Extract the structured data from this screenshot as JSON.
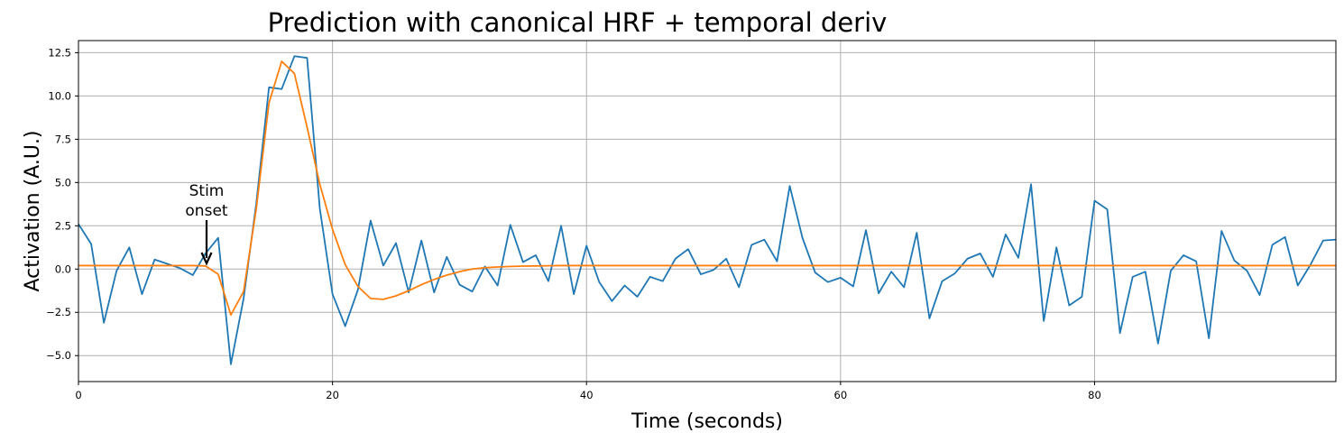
{
  "chart_data": {
    "type": "line",
    "title": "Prediction with canonical HRF + temporal deriv",
    "xlabel": "Time (seconds)",
    "ylabel": "Activation (A.U.)",
    "xlim": [
      0,
      99
    ],
    "ylim": [
      -6.5,
      13.2
    ],
    "xticks": [
      0,
      20,
      40,
      60,
      80
    ],
    "xtick_labels": [
      "0",
      "20",
      "40",
      "60",
      "80"
    ],
    "yticks": [
      -5.0,
      -2.5,
      0.0,
      2.5,
      5.0,
      7.5,
      10.0,
      12.5
    ],
    "ytick_labels": [
      "−5.0",
      "−2.5",
      "0.0",
      "2.5",
      "5.0",
      "7.5",
      "10.0",
      "12.5"
    ],
    "grid": true,
    "series": [
      {
        "color": "#1f77b4",
        "x": [
          0,
          1,
          2,
          3,
          4,
          5,
          6,
          7,
          8,
          9,
          10,
          11,
          12,
          13,
          14,
          15,
          16,
          17,
          18,
          19,
          20,
          21,
          22,
          23,
          24,
          25,
          26,
          27,
          28,
          29,
          30,
          31,
          32,
          33,
          34,
          35,
          36,
          37,
          38,
          39,
          40,
          41,
          42,
          43,
          44,
          45,
          46,
          47,
          48,
          49,
          50,
          51,
          52,
          53,
          54,
          55,
          56,
          57,
          58,
          59,
          60,
          61,
          62,
          63,
          64,
          65,
          66,
          67,
          68,
          69,
          70,
          71,
          72,
          73,
          74,
          75,
          76,
          77,
          78,
          79,
          80,
          81,
          82,
          83,
          84,
          85,
          86,
          87,
          88,
          89,
          90,
          91,
          92,
          93,
          94,
          95,
          96,
          97,
          98,
          99
        ],
        "y": [
          2.6,
          1.45,
          -3.1,
          -0.1,
          1.25,
          -1.45,
          0.55,
          0.3,
          0.05,
          -0.35,
          0.9,
          1.8,
          -5.5,
          -1.7,
          3.8,
          10.5,
          10.4,
          12.3,
          12.2,
          3.5,
          -1.45,
          -3.3,
          -1.2,
          2.8,
          0.2,
          1.5,
          -1.35,
          1.65,
          -1.35,
          0.7,
          -0.9,
          -1.3,
          0.15,
          -0.95,
          2.55,
          0.4,
          0.8,
          -0.7,
          2.5,
          -1.45,
          1.35,
          -0.75,
          -1.85,
          -0.95,
          -1.6,
          -0.45,
          -0.7,
          0.6,
          1.15,
          -0.3,
          -0.05,
          0.6,
          -1.05,
          1.4,
          1.7,
          0.45,
          4.8,
          1.8,
          -0.2,
          -0.75,
          -0.5,
          -1.0,
          2.25,
          -1.4,
          -0.15,
          -1.05,
          2.1,
          -2.85,
          -0.7,
          -0.25,
          0.6,
          0.9,
          -0.45,
          2.0,
          0.65,
          4.9,
          -3.0,
          1.25,
          -2.1,
          -1.6,
          3.95,
          3.45,
          -3.7,
          -0.45,
          -0.15,
          -4.3,
          -0.1,
          0.8,
          0.45,
          -4.0,
          2.2,
          0.5,
          -0.1,
          -1.5,
          1.4,
          1.85,
          -0.95,
          0.25,
          1.65,
          1.7
        ]
      },
      {
        "color": "#ff7f0e",
        "x": [
          0,
          1,
          2,
          3,
          4,
          5,
          6,
          7,
          8,
          9,
          10,
          11,
          12,
          13,
          14,
          15,
          16,
          17,
          18,
          19,
          20,
          21,
          22,
          23,
          24,
          25,
          26,
          27,
          28,
          29,
          30,
          31,
          32,
          33,
          34,
          35,
          36,
          37,
          38,
          39,
          40,
          41,
          42,
          43,
          44,
          45,
          46,
          47,
          48,
          49,
          50,
          51,
          52,
          53,
          54,
          55,
          56,
          57,
          58,
          59,
          60,
          61,
          62,
          63,
          64,
          65,
          66,
          67,
          68,
          69,
          70,
          71,
          72,
          73,
          74,
          75,
          76,
          77,
          78,
          79,
          80,
          81,
          82,
          83,
          84,
          85,
          86,
          87,
          88,
          89,
          90,
          91,
          92,
          93,
          94,
          95,
          96,
          97,
          98,
          99
        ],
        "y": [
          0.2,
          0.2,
          0.2,
          0.2,
          0.2,
          0.2,
          0.2,
          0.2,
          0.2,
          0.2,
          0.18,
          -0.3,
          -2.65,
          -1.3,
          3.5,
          9.6,
          12.0,
          11.3,
          8.2,
          4.9,
          2.3,
          0.25,
          -1.0,
          -1.7,
          -1.75,
          -1.55,
          -1.25,
          -0.9,
          -0.6,
          -0.35,
          -0.15,
          0.0,
          0.08,
          0.12,
          0.15,
          0.17,
          0.18,
          0.19,
          0.2,
          0.2,
          0.2,
          0.2,
          0.2,
          0.2,
          0.2,
          0.2,
          0.2,
          0.2,
          0.2,
          0.2,
          0.2,
          0.2,
          0.2,
          0.2,
          0.2,
          0.2,
          0.2,
          0.2,
          0.2,
          0.2,
          0.2,
          0.2,
          0.2,
          0.2,
          0.2,
          0.2,
          0.2,
          0.2,
          0.2,
          0.2,
          0.2,
          0.2,
          0.2,
          0.2,
          0.2,
          0.2,
          0.2,
          0.2,
          0.2,
          0.2,
          0.2,
          0.2,
          0.2,
          0.2,
          0.2,
          0.2,
          0.2,
          0.2,
          0.2,
          0.2,
          0.2,
          0.2,
          0.2,
          0.2,
          0.2,
          0.2,
          0.2,
          0.2,
          0.2,
          0.2
        ]
      }
    ],
    "annotations": [
      {
        "text_lines": [
          "Stim",
          "onset"
        ],
        "point": [
          10,
          0.2
        ]
      }
    ]
  }
}
